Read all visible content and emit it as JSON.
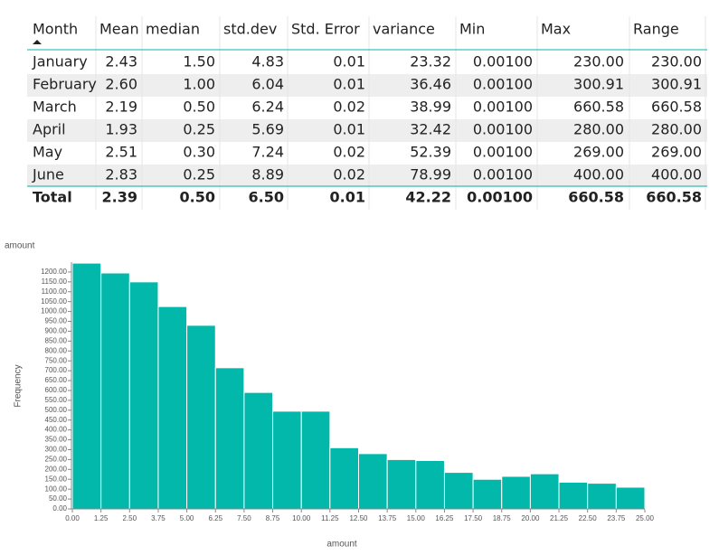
{
  "table": {
    "columns": [
      "Month",
      "Mean",
      "median",
      "std.dev",
      "Std. Error",
      "variance",
      "Min",
      "Max",
      "Range"
    ],
    "rows": [
      [
        "January",
        "2.43",
        "1.50",
        "4.83",
        "0.01",
        "23.32",
        "0.00100",
        "230.00",
        "230.00"
      ],
      [
        "February",
        "2.60",
        "1.00",
        "6.04",
        "0.01",
        "36.46",
        "0.00100",
        "300.91",
        "300.91"
      ],
      [
        "March",
        "2.19",
        "0.50",
        "6.24",
        "0.02",
        "38.99",
        "0.00100",
        "660.58",
        "660.58"
      ],
      [
        "April",
        "1.93",
        "0.25",
        "5.69",
        "0.01",
        "32.42",
        "0.00100",
        "280.00",
        "280.00"
      ],
      [
        "May",
        "2.51",
        "0.30",
        "7.24",
        "0.02",
        "52.39",
        "0.00100",
        "269.00",
        "269.00"
      ],
      [
        "June",
        "2.83",
        "0.25",
        "8.89",
        "0.02",
        "78.99",
        "0.00100",
        "400.00",
        "400.00"
      ]
    ],
    "total": [
      "Total",
      "2.39",
      "0.50",
      "6.50",
      "0.01",
      "42.22",
      "0.00100",
      "660.58",
      "660.58"
    ]
  },
  "chart_data": {
    "type": "histogram",
    "title": "amount",
    "xlabel": "amount",
    "ylabel": "Frequency",
    "color": "#01b8aa",
    "bins": [
      0,
      1.25,
      2.5,
      3.75,
      5,
      6.25,
      7.5,
      8.75,
      10,
      11.25,
      12.5,
      13.75,
      15,
      16.25,
      17.5,
      18.75,
      20,
      21.25,
      22.5,
      23.75,
      25
    ],
    "values": [
      1245,
      1195,
      1150,
      1025,
      930,
      715,
      590,
      495,
      495,
      310,
      280,
      250,
      245,
      185,
      150,
      165,
      178,
      135,
      130,
      110
    ],
    "xlim": [
      0,
      25
    ],
    "ylim": [
      0,
      1250
    ],
    "xticks": [
      {
        "value": 0,
        "label": "0.00"
      },
      {
        "value": 1.25,
        "label": "1.25"
      },
      {
        "value": 2.5,
        "label": "2.50"
      },
      {
        "value": 3.75,
        "label": "3.75"
      },
      {
        "value": 5,
        "label": "5.00"
      },
      {
        "value": 6.25,
        "label": "6.25"
      },
      {
        "value": 7.5,
        "label": "7.50"
      },
      {
        "value": 8.75,
        "label": "8.75"
      },
      {
        "value": 10,
        "label": "10.00"
      },
      {
        "value": 11.25,
        "label": "11.25"
      },
      {
        "value": 12.5,
        "label": "12.50"
      },
      {
        "value": 13.75,
        "label": "13.75"
      },
      {
        "value": 15,
        "label": "15.00"
      },
      {
        "value": 16.25,
        "label": "16.25"
      },
      {
        "value": 17.5,
        "label": "17.50"
      },
      {
        "value": 18.75,
        "label": "18.75"
      },
      {
        "value": 20,
        "label": "20.00"
      },
      {
        "value": 21.25,
        "label": "21.25"
      },
      {
        "value": 22.5,
        "label": "22.50"
      },
      {
        "value": 23.75,
        "label": "23.75"
      },
      {
        "value": 25,
        "label": "25.00"
      }
    ],
    "yticks": [
      {
        "value": 0,
        "label": "0.00"
      },
      {
        "value": 50,
        "label": "50.00"
      },
      {
        "value": 100,
        "label": "100.00"
      },
      {
        "value": 150,
        "label": "150.00"
      },
      {
        "value": 200,
        "label": "200.00"
      },
      {
        "value": 250,
        "label": "250.00"
      },
      {
        "value": 300,
        "label": "300.00"
      },
      {
        "value": 350,
        "label": "350.00"
      },
      {
        "value": 400,
        "label": "400.00"
      },
      {
        "value": 450,
        "label": "450.00"
      },
      {
        "value": 500,
        "label": "500.00"
      },
      {
        "value": 550,
        "label": "550.00"
      },
      {
        "value": 600,
        "label": "600.00"
      },
      {
        "value": 650,
        "label": "650.00"
      },
      {
        "value": 700,
        "label": "700.00"
      },
      {
        "value": 750,
        "label": "750.00"
      },
      {
        "value": 800,
        "label": "800.00"
      },
      {
        "value": 850,
        "label": "850.00"
      },
      {
        "value": 900,
        "label": "900.00"
      },
      {
        "value": 950,
        "label": "950.00"
      },
      {
        "value": 1000,
        "label": "1000.00"
      },
      {
        "value": 1050,
        "label": "1050.00"
      },
      {
        "value": 1100,
        "label": "1100.00"
      },
      {
        "value": 1150,
        "label": "1150.00"
      },
      {
        "value": 1200,
        "label": "1200.00"
      }
    ]
  }
}
